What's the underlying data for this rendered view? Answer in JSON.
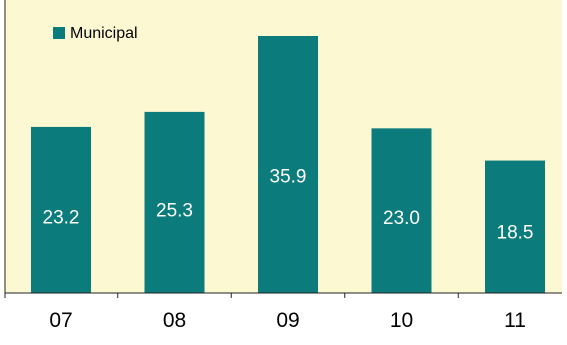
{
  "chart_data": {
    "type": "bar",
    "categories": [
      "07",
      "08",
      "09",
      "10",
      "11"
    ],
    "series": [
      {
        "name": "Municipal",
        "values": [
          23.2,
          25.3,
          35.9,
          23.0,
          18.5
        ],
        "value_labels": [
          "23.2",
          "25.3",
          "35.9",
          "23.0",
          "18.5"
        ]
      }
    ],
    "ylim": [
      0,
      40
    ],
    "grid": false,
    "legend": "top-left"
  },
  "colors": {
    "bar": "#0b7b7b",
    "plot_background": "#fcf8d2",
    "axis": "#222222",
    "bar_label": "#ffffff",
    "tick_label": "#000000"
  }
}
